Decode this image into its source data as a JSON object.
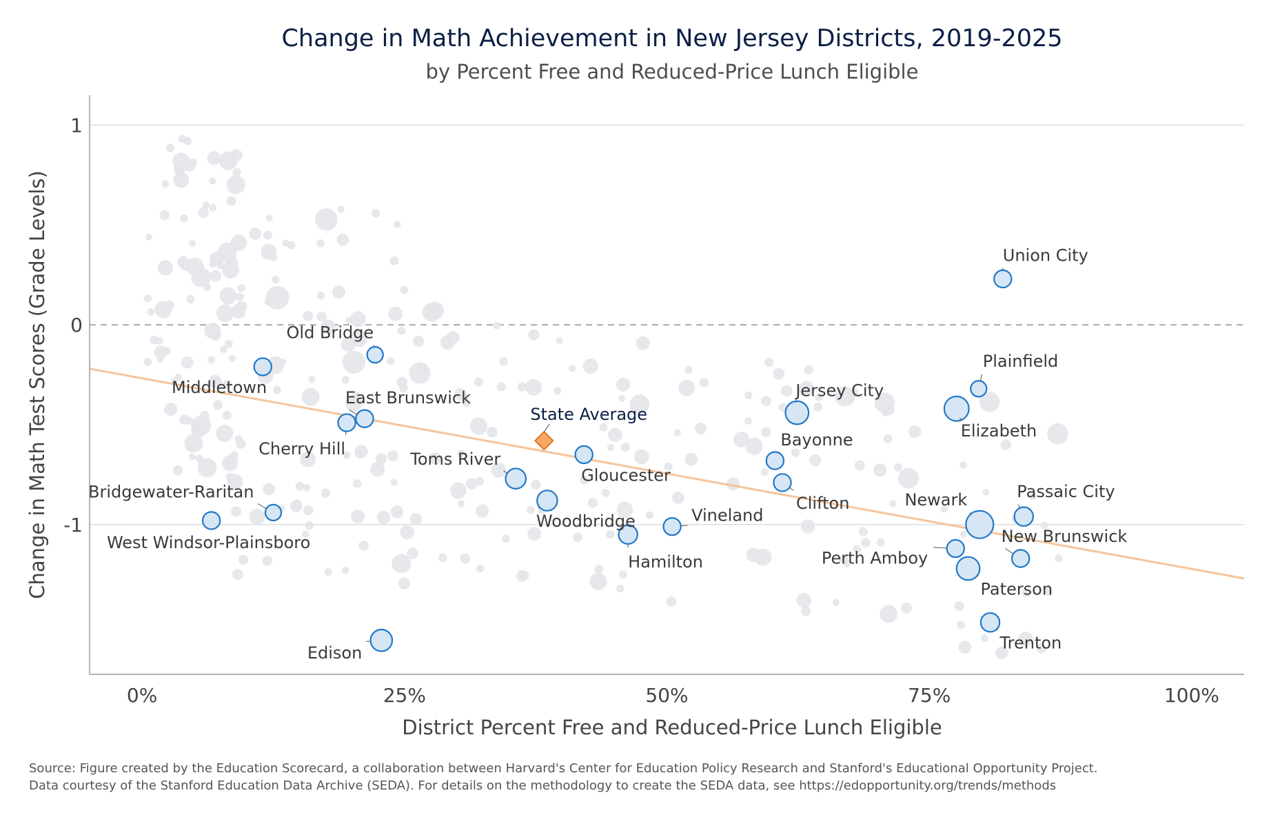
{
  "chart_data": {
    "type": "scatter",
    "title": "Change in Math Achievement in New Jersey Districts, 2019-2025",
    "subtitle": "by Percent Free and Reduced-Price Lunch Eligible",
    "xlabel": "District Percent Free and Reduced-Price Lunch Eligible",
    "ylabel": "Change in Math Test Scores (Grade Levels)",
    "xlim": [
      -0.05,
      1.05
    ],
    "ylim": [
      -1.75,
      1.15
    ],
    "x_ticks": [
      {
        "value": 0,
        "label": "0%"
      },
      {
        "value": 0.25,
        "label": "25%"
      },
      {
        "value": 0.5,
        "label": "50%"
      },
      {
        "value": 0.75,
        "label": "75%"
      },
      {
        "value": 1,
        "label": "100%"
      }
    ],
    "y_ticks": [
      {
        "value": 1,
        "label": "1"
      },
      {
        "value": 0,
        "label": "0"
      },
      {
        "value": -1,
        "label": "-1"
      }
    ],
    "grid": "horizontal",
    "reference_line": {
      "y": 0,
      "style": "dashed"
    },
    "trend_line": {
      "x": [
        -0.05,
        1.05
      ],
      "y": [
        -0.22,
        -1.27
      ],
      "color": "#f5c49a"
    },
    "colors": {
      "highlight_fill": "#d6e6f5",
      "highlight_stroke": "#1f78c8",
      "background_fill": "#e3e6ea",
      "state_fill": "#f7a866",
      "state_stroke": "#e07a1f",
      "trend": "#f5c49a"
    },
    "highlighted": [
      {
        "name": "Union City",
        "x": 0.82,
        "y": 0.23,
        "size": 12
      },
      {
        "name": "Plainfield",
        "x": 0.797,
        "y": -0.32,
        "size": 11
      },
      {
        "name": "Elizabeth",
        "x": 0.776,
        "y": -0.42,
        "size": 17
      },
      {
        "name": "Jersey City",
        "x": 0.624,
        "y": -0.44,
        "size": 16
      },
      {
        "name": "Bayonne",
        "x": 0.603,
        "y": -0.68,
        "size": 12
      },
      {
        "name": "Clifton",
        "x": 0.61,
        "y": -0.79,
        "size": 12
      },
      {
        "name": "Passaic City",
        "x": 0.84,
        "y": -0.96,
        "size": 13
      },
      {
        "name": "Newark",
        "x": 0.798,
        "y": -1.0,
        "size": 19
      },
      {
        "name": "New Brunswick",
        "x": 0.837,
        "y": -1.17,
        "size": 12
      },
      {
        "name": "Perth Amboy",
        "x": 0.775,
        "y": -1.12,
        "size": 12
      },
      {
        "name": "Paterson",
        "x": 0.787,
        "y": -1.22,
        "size": 16
      },
      {
        "name": "Trenton",
        "x": 0.808,
        "y": -1.49,
        "size": 13
      },
      {
        "name": "Vineland",
        "x": 0.505,
        "y": -1.01,
        "size": 12
      },
      {
        "name": "Hamilton",
        "x": 0.463,
        "y": -1.05,
        "size": 13
      },
      {
        "name": "Gloucester",
        "x": 0.421,
        "y": -0.65,
        "size": 12
      },
      {
        "name": "Woodbridge",
        "x": 0.386,
        "y": -0.88,
        "size": 14
      },
      {
        "name": "Toms River",
        "x": 0.356,
        "y": -0.77,
        "size": 14
      },
      {
        "name": "Old Bridge",
        "x": 0.222,
        "y": -0.15,
        "size": 11
      },
      {
        "name": "East Brunswick",
        "x": 0.212,
        "y": -0.47,
        "size": 12
      },
      {
        "name": "Cherry Hill",
        "x": 0.195,
        "y": -0.49,
        "size": 12
      },
      {
        "name": "Middletown",
        "x": 0.115,
        "y": -0.21,
        "size": 12
      },
      {
        "name": "Bridgewater-Raritan",
        "x": 0.125,
        "y": -0.94,
        "size": 11
      },
      {
        "name": "West Windsor-Plainsboro",
        "x": 0.066,
        "y": -0.98,
        "size": 12
      },
      {
        "name": "Edison",
        "x": 0.228,
        "y": -1.58,
        "size": 15
      }
    ],
    "state_average": {
      "name": "State Average",
      "x": 0.383,
      "y": -0.58
    }
  },
  "source": {
    "line1": "Source: Figure created by the Education Scorecard, a collaboration between Harvard's Center for Education Policy Research and Stanford's Educational Opportunity Project.",
    "line2": "Data courtesy of the Stanford Education Data Archive (SEDA). For details on the methodology to create the SEDA data, see https://edopportunity.org/trends/methods"
  }
}
